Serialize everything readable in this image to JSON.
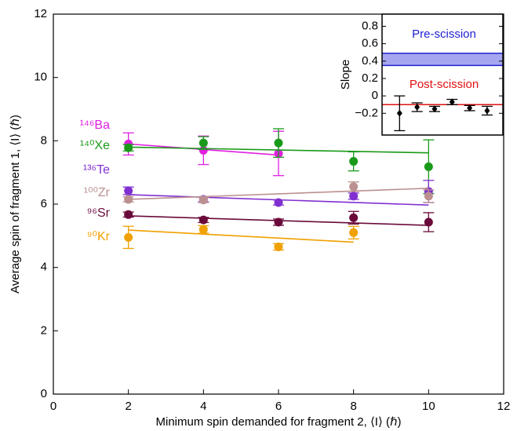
{
  "chart_data": [
    {
      "type": "scatter",
      "xlabel": "Minimum spin demanded for fragment 2, ⟨I⟩ (ℏ)",
      "ylabel": "Average spin of fragment 1, ⟨I⟩ (ℏ)",
      "xlim": [
        0,
        12
      ],
      "xticks": [
        0,
        2,
        4,
        6,
        8,
        10,
        12
      ],
      "ylim": [
        0,
        12
      ],
      "yticks": [
        0,
        2,
        4,
        6,
        8,
        10,
        12
      ],
      "series": [
        {
          "name": "¹⁴⁶Ba",
          "color": "#e020e0",
          "x": [
            2,
            4,
            6
          ],
          "values": [
            7.9,
            7.7,
            7.6
          ],
          "errors": [
            0.35,
            0.45,
            0.7
          ],
          "fit_x": [
            2,
            6
          ],
          "fit_y": [
            7.9,
            7.55
          ]
        },
        {
          "name": "¹⁴⁰Xe",
          "color": "#1a9a1a",
          "x": [
            2,
            4,
            6,
            8,
            10
          ],
          "values": [
            7.78,
            7.93,
            7.93,
            7.35,
            7.18
          ],
          "errors": [
            0.1,
            0.2,
            0.45,
            0.3,
            0.85
          ],
          "fit_x": [
            2,
            10
          ],
          "fit_y": [
            7.8,
            7.62
          ]
        },
        {
          "name": "¹³⁶Te",
          "color": "#8030d0",
          "x": [
            2,
            4,
            6,
            8,
            10
          ],
          "values": [
            6.42,
            6.15,
            6.05,
            6.25,
            6.4
          ],
          "errors": [
            0.12,
            0.08,
            0.08,
            0.1,
            0.35
          ],
          "fit_x": [
            2,
            10
          ],
          "fit_y": [
            6.3,
            5.97
          ]
        },
        {
          "name": "¹⁰⁰Zr",
          "color": "#bb9090",
          "x": [
            2,
            4,
            6,
            8,
            10
          ],
          "values": [
            6.15,
            6.13,
            null,
            6.55,
            6.25
          ],
          "errors": [
            0.08,
            0.08,
            null,
            0.15,
            0.2
          ],
          "fit_x": [
            2,
            10
          ],
          "fit_y": [
            6.15,
            6.5
          ]
        },
        {
          "name": "⁹⁶Sr",
          "color": "#6a0a3a",
          "x": [
            2,
            4,
            6,
            8,
            10
          ],
          "values": [
            5.67,
            5.5,
            5.43,
            5.57,
            5.43
          ],
          "errors": [
            0.08,
            0.08,
            0.1,
            0.2,
            0.3
          ],
          "fit_x": [
            2,
            10
          ],
          "fit_y": [
            5.63,
            5.33
          ]
        },
        {
          "name": "⁹⁰Kr",
          "color": "#f0a000",
          "x": [
            2,
            4,
            6,
            8
          ],
          "values": [
            4.95,
            5.2,
            4.65,
            5.1
          ],
          "errors": [
            0.35,
            0.12,
            0.1,
            0.2
          ],
          "fit_x": [
            2,
            8
          ],
          "fit_y": [
            5.18,
            4.8
          ]
        }
      ]
    },
    {
      "type": "inset",
      "ylabel": "Slope",
      "xlim": [
        0,
        6.9
      ],
      "ylim": [
        -0.45,
        0.94
      ],
      "yticks": [
        {
          "value": -0.2,
          "label": "−0.2"
        },
        0,
        0.2,
        0.4,
        0.6,
        0.8
      ],
      "x": [
        1,
        2,
        3,
        4,
        5,
        6
      ],
      "values": [
        -0.2,
        -0.13,
        -0.15,
        -0.07,
        -0.14,
        -0.17
      ],
      "errors": [
        0.2,
        0.05,
        0.03,
        0.03,
        0.03,
        0.05
      ],
      "color": "#000000",
      "pre_scission": {
        "label": "Pre-scission",
        "range": [
          0.35,
          0.49
        ],
        "color": "#2020d0"
      },
      "post_scission": {
        "label": "Post-scission",
        "value": -0.1,
        "color": "#e01010"
      }
    }
  ]
}
